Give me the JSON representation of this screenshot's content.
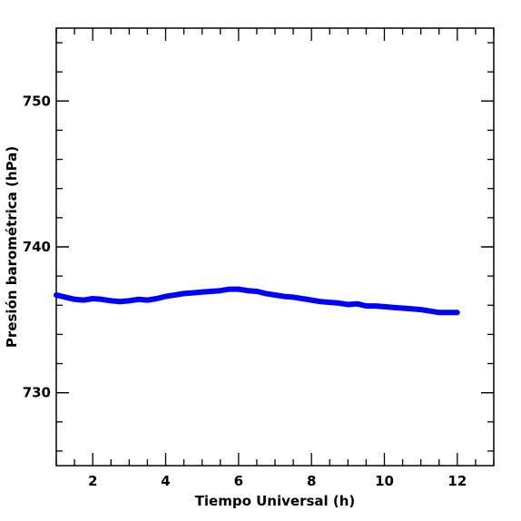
{
  "chart_data": {
    "type": "line",
    "title": "",
    "xlabel": "Tiempo Universal (h)",
    "ylabel": "Presión barométrica (hPa)",
    "xlim": [
      1.0,
      13.0
    ],
    "ylim": [
      725,
      755
    ],
    "xticks": [
      2,
      4,
      6,
      8,
      10,
      12
    ],
    "xtick_labels": [
      "2",
      "4",
      "6",
      "8",
      "10",
      "12"
    ],
    "yticks": [
      730,
      740,
      750
    ],
    "ytick_labels": [
      "730",
      "740",
      "750"
    ],
    "grid": false,
    "series": [
      {
        "color": "#0000ff",
        "x": [
          1.0,
          1.25,
          1.5,
          1.75,
          2.0,
          2.25,
          2.5,
          2.75,
          3.0,
          3.25,
          3.5,
          3.75,
          4.0,
          4.25,
          4.5,
          4.75,
          5.0,
          5.25,
          5.5,
          5.75,
          6.0,
          6.25,
          6.5,
          6.75,
          7.0,
          7.25,
          7.5,
          7.75,
          8.0,
          8.25,
          8.5,
          8.75,
          9.0,
          9.25,
          9.5,
          9.75,
          10.0,
          10.25,
          10.5,
          10.75,
          11.0,
          11.25,
          11.5,
          11.75,
          12.0
        ],
        "y": [
          736.7,
          736.55,
          736.4,
          736.35,
          736.45,
          736.4,
          736.3,
          736.25,
          736.3,
          736.4,
          736.35,
          736.45,
          736.6,
          736.7,
          736.8,
          736.85,
          736.9,
          736.95,
          737.0,
          737.1,
          737.1,
          737.0,
          736.95,
          736.8,
          736.7,
          736.6,
          736.55,
          736.45,
          736.35,
          736.25,
          736.2,
          736.15,
          736.05,
          736.1,
          735.95,
          735.95,
          735.9,
          735.85,
          735.8,
          735.75,
          735.7,
          735.6,
          735.5,
          735.5,
          735.5
        ]
      }
    ]
  }
}
